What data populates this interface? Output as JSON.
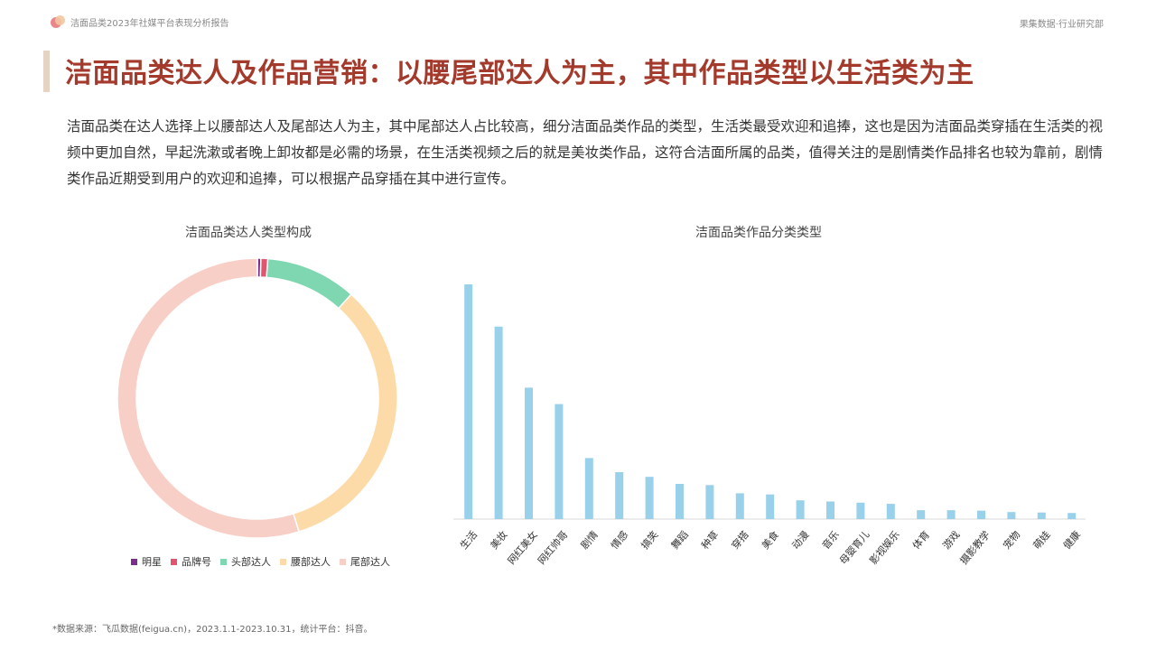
{
  "header": {
    "report_title": "洁面品类2023年社媒平台表现分析报告",
    "org": "果集数据·行业研究部"
  },
  "main_title": "洁面品类达人及作品营销：以腰尾部达人为主，其中作品类型以生活类为主",
  "description": "洁面品类在达人选择上以腰部达人及尾部达人为主，其中尾部达人占比较高，细分洁面品类作品的类型，生活类最受欢迎和追捧，这也是因为洁面品类穿插在生活类的视频中更加自然，早起洗漱或者晚上卸妆都是必需的场景，在生活类视频之后的就是美妆类作品，这符合洁面所属的品类，值得关注的是剧情类作品排名也较为靠前，剧情类作品近期受到用户的欢迎和追捧，可以根据产品穿插在其中进行宣传。",
  "footnote": "*数据来源：飞瓜数据(feigua.cn)，2023.1.1-2023.10.31，统计平台：抖音。",
  "chart_data": [
    {
      "type": "pie",
      "title": "洁面品类达人类型构成",
      "donut": true,
      "legend_position": "bottom",
      "slices": [
        {
          "label": "明星",
          "value": 0.4,
          "color": "#7b2d8e"
        },
        {
          "label": "品牌号",
          "value": 0.8,
          "color": "#e0566e"
        },
        {
          "label": "头部达人",
          "value": 10.5,
          "color": "#7fd7b1"
        },
        {
          "label": "腰部达人",
          "value": 33.5,
          "color": "#fddba8"
        },
        {
          "label": "尾部达人",
          "value": 54.8,
          "color": "#f8cfc7"
        }
      ]
    },
    {
      "type": "bar",
      "title": "洁面品类作品分类类型",
      "color": "#99d0ea",
      "categories": [
        "生活",
        "美妆",
        "网红美女",
        "网红帅哥",
        "剧情",
        "情感",
        "搞笑",
        "舞蹈",
        "种草",
        "穿搭",
        "美食",
        "动漫",
        "音乐",
        "母婴育儿",
        "影视娱乐",
        "体育",
        "游戏",
        "摄影教学",
        "宠物",
        "萌娃",
        "健康"
      ],
      "values": [
        100,
        82,
        56,
        49,
        26,
        20,
        18,
        15,
        14.5,
        11,
        10.5,
        8,
        7.5,
        7,
        6.5,
        3.8,
        3.8,
        3.6,
        3,
        2.8,
        2.6
      ],
      "ylim": [
        0,
        100
      ],
      "grid": false
    }
  ]
}
